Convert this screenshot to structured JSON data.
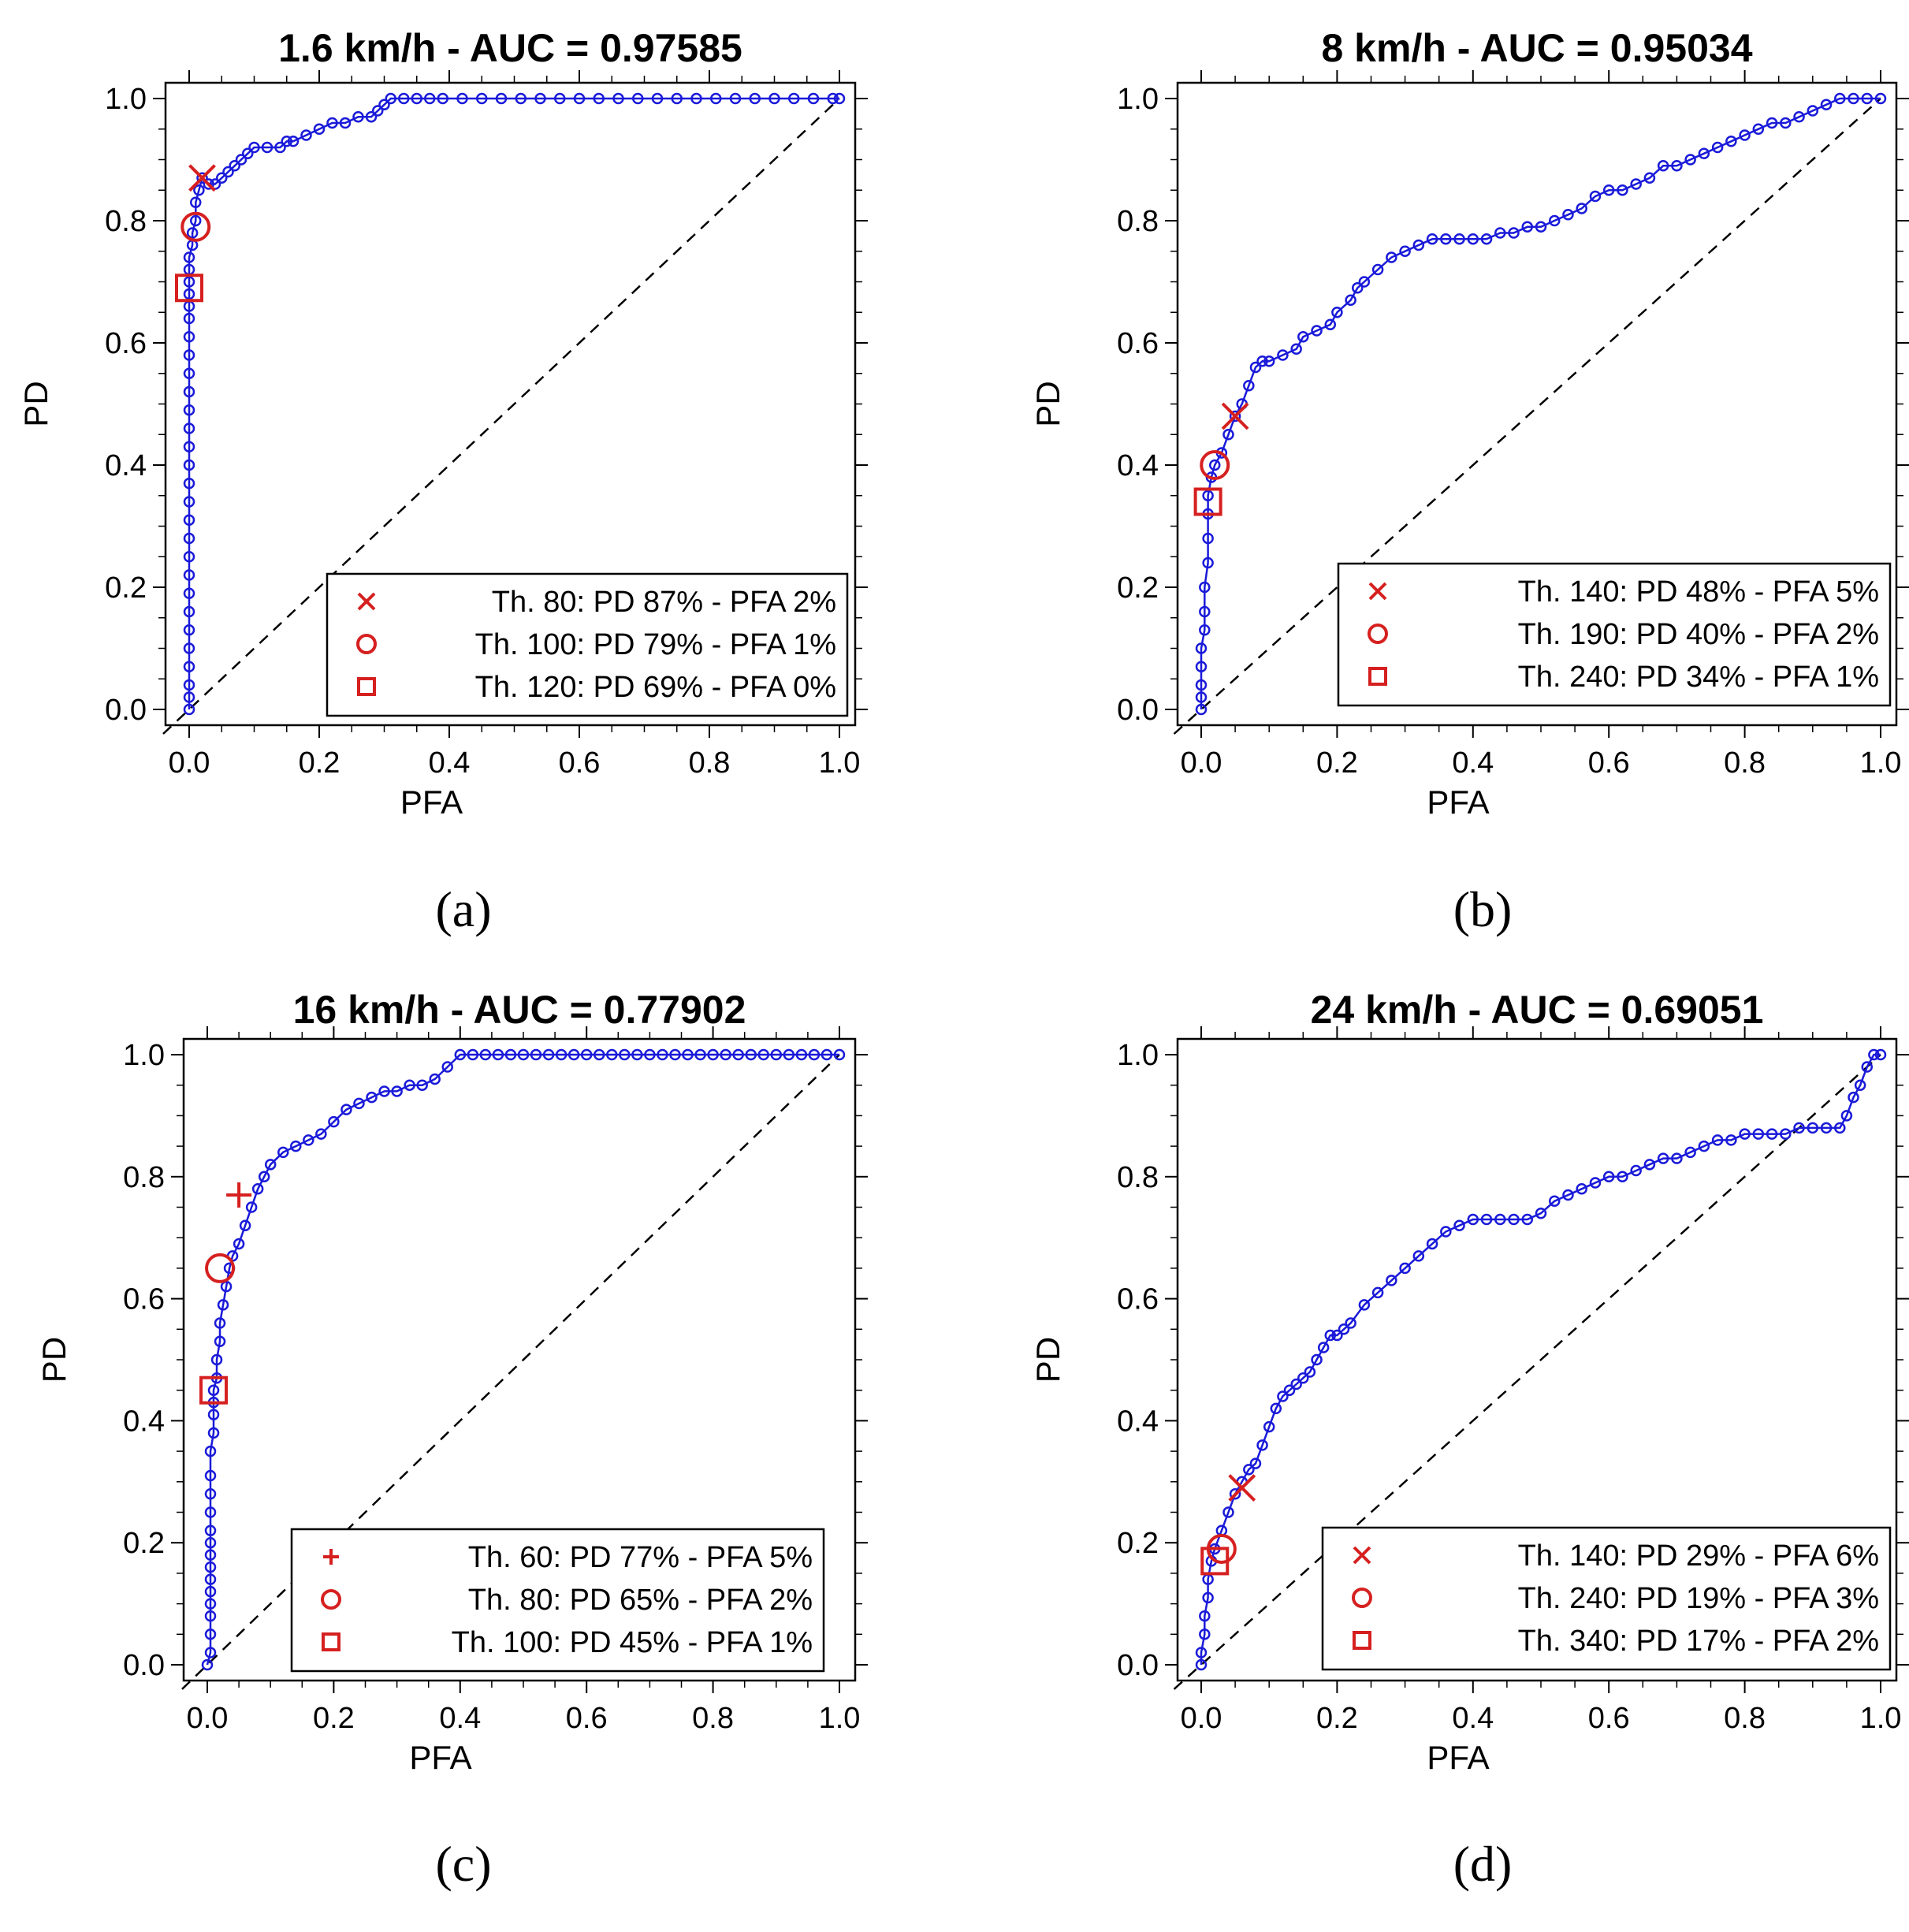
{
  "colors": {
    "curve": "#1a1ad9",
    "marker": "#d62020",
    "axis": "#000000",
    "diagonal": "#000000"
  },
  "chart_data": [
    {
      "type": "line",
      "panel_label": "(a)",
      "title": "1.6 km/h - AUC = 0.97585",
      "xlabel": "PFA",
      "ylabel": "PD",
      "xlim": [
        0,
        1
      ],
      "ylim": [
        0,
        1
      ],
      "xticks": [
        "0.0",
        "0.2",
        "0.4",
        "0.6",
        "0.8",
        "1.0"
      ],
      "yticks": [
        "0.0",
        "0.2",
        "0.4",
        "0.6",
        "0.8",
        "1.0"
      ],
      "legend_position": "bottom-right",
      "diagonal": true,
      "series": [
        {
          "name": "ROC",
          "x": [
            0,
            0,
            0,
            0,
            0,
            0,
            0,
            0,
            0,
            0,
            0,
            0,
            0,
            0,
            0,
            0,
            0,
            0,
            0,
            0,
            0,
            0,
            0,
            0,
            0,
            0,
            0,
            0,
            0.005,
            0.005,
            0.01,
            0.01,
            0.015,
            0.02,
            0.03,
            0.04,
            0.05,
            0.06,
            0.07,
            0.08,
            0.09,
            0.1,
            0.12,
            0.14,
            0.15,
            0.16,
            0.18,
            0.2,
            0.22,
            0.24,
            0.26,
            0.28,
            0.29,
            0.3,
            0.31,
            0.33,
            0.35,
            0.37,
            0.39,
            0.42,
            0.45,
            0.48,
            0.51,
            0.54,
            0.57,
            0.6,
            0.63,
            0.66,
            0.69,
            0.72,
            0.75,
            0.78,
            0.81,
            0.84,
            0.87,
            0.9,
            0.93,
            0.96,
            0.99,
            1.0
          ],
          "y": [
            0,
            0.02,
            0.04,
            0.07,
            0.1,
            0.13,
            0.16,
            0.19,
            0.22,
            0.25,
            0.28,
            0.31,
            0.34,
            0.37,
            0.4,
            0.43,
            0.46,
            0.49,
            0.52,
            0.55,
            0.58,
            0.61,
            0.64,
            0.66,
            0.68,
            0.7,
            0.72,
            0.74,
            0.76,
            0.78,
            0.8,
            0.83,
            0.85,
            0.87,
            0.86,
            0.86,
            0.87,
            0.88,
            0.89,
            0.9,
            0.91,
            0.92,
            0.92,
            0.92,
            0.93,
            0.93,
            0.94,
            0.95,
            0.96,
            0.96,
            0.97,
            0.97,
            0.98,
            0.99,
            1.0,
            1.0,
            1.0,
            1.0,
            1.0,
            1.0,
            1.0,
            1.0,
            1.0,
            1.0,
            1.0,
            1.0,
            1.0,
            1.0,
            1.0,
            1.0,
            1.0,
            1.0,
            1.0,
            1.0,
            1.0,
            1.0,
            1.0,
            1.0,
            1.0,
            1.0
          ]
        }
      ],
      "operating_points": [
        {
          "marker": "x",
          "label": "Th. 80: PD 87% - PFA 2%",
          "pfa": 0.02,
          "pd": 0.87
        },
        {
          "marker": "circle",
          "label": "Th. 100: PD 79% - PFA 1%",
          "pfa": 0.01,
          "pd": 0.79
        },
        {
          "marker": "square",
          "label": "Th. 120: PD 69% - PFA 0%",
          "pfa": 0.0,
          "pd": 0.69
        }
      ]
    },
    {
      "type": "line",
      "panel_label": "(b)",
      "title": "8 km/h - AUC = 0.95034",
      "xlabel": "PFA",
      "ylabel": "PD",
      "xlim": [
        0,
        1
      ],
      "ylim": [
        0,
        1
      ],
      "xticks": [
        "0.0",
        "0.2",
        "0.4",
        "0.6",
        "0.8",
        "1.0"
      ],
      "yticks": [
        "0.0",
        "0.2",
        "0.4",
        "0.6",
        "0.8",
        "1.0"
      ],
      "legend_position": "bottom-right",
      "diagonal": true,
      "series": [
        {
          "name": "ROC",
          "x": [
            0,
            0,
            0,
            0,
            0,
            0.005,
            0.005,
            0.005,
            0.01,
            0.01,
            0.01,
            0.01,
            0.015,
            0.02,
            0.03,
            0.04,
            0.05,
            0.06,
            0.07,
            0.08,
            0.09,
            0.1,
            0.12,
            0.14,
            0.15,
            0.17,
            0.19,
            0.2,
            0.22,
            0.23,
            0.24,
            0.26,
            0.28,
            0.3,
            0.32,
            0.34,
            0.36,
            0.38,
            0.4,
            0.42,
            0.44,
            0.46,
            0.48,
            0.5,
            0.52,
            0.54,
            0.56,
            0.58,
            0.6,
            0.62,
            0.64,
            0.66,
            0.68,
            0.7,
            0.72,
            0.74,
            0.76,
            0.78,
            0.8,
            0.82,
            0.84,
            0.86,
            0.88,
            0.9,
            0.92,
            0.94,
            0.96,
            0.98,
            1.0
          ],
          "y": [
            0,
            0.02,
            0.04,
            0.07,
            0.1,
            0.13,
            0.16,
            0.2,
            0.24,
            0.28,
            0.32,
            0.35,
            0.38,
            0.4,
            0.42,
            0.45,
            0.48,
            0.5,
            0.53,
            0.56,
            0.57,
            0.57,
            0.58,
            0.59,
            0.61,
            0.62,
            0.63,
            0.65,
            0.67,
            0.69,
            0.7,
            0.72,
            0.74,
            0.75,
            0.76,
            0.77,
            0.77,
            0.77,
            0.77,
            0.77,
            0.78,
            0.78,
            0.79,
            0.79,
            0.8,
            0.81,
            0.82,
            0.84,
            0.85,
            0.85,
            0.86,
            0.87,
            0.89,
            0.89,
            0.9,
            0.91,
            0.92,
            0.93,
            0.94,
            0.95,
            0.96,
            0.96,
            0.97,
            0.98,
            0.99,
            1.0,
            1.0,
            1.0,
            1.0
          ]
        }
      ],
      "operating_points": [
        {
          "marker": "x",
          "label": "Th. 140: PD 48% - PFA 5%",
          "pfa": 0.05,
          "pd": 0.48
        },
        {
          "marker": "circle",
          "label": "Th. 190: PD 40% - PFA 2%",
          "pfa": 0.02,
          "pd": 0.4
        },
        {
          "marker": "square",
          "label": "Th. 240: PD 34% - PFA 1%",
          "pfa": 0.01,
          "pd": 0.34
        }
      ]
    },
    {
      "type": "line",
      "panel_label": "(c)",
      "title": "16 km/h - AUC = 0.77902",
      "xlabel": "PFA",
      "ylabel": "PD",
      "xlim": [
        0,
        1
      ],
      "ylim": [
        0,
        1
      ],
      "xticks": [
        "0.0",
        "0.2",
        "0.4",
        "0.6",
        "0.8",
        "1.0"
      ],
      "yticks": [
        "0.0",
        "0.2",
        "0.4",
        "0.6",
        "0.8",
        "1.0"
      ],
      "legend_position": "bottom-right",
      "diagonal": true,
      "series": [
        {
          "name": "ROC",
          "x": [
            0,
            0.005,
            0.005,
            0.005,
            0.005,
            0.005,
            0.005,
            0.005,
            0.005,
            0.005,
            0.005,
            0.005,
            0.005,
            0.005,
            0.005,
            0.01,
            0.01,
            0.01,
            0.01,
            0.015,
            0.015,
            0.02,
            0.02,
            0.025,
            0.03,
            0.035,
            0.04,
            0.05,
            0.06,
            0.07,
            0.08,
            0.09,
            0.1,
            0.12,
            0.14,
            0.16,
            0.18,
            0.2,
            0.22,
            0.24,
            0.26,
            0.28,
            0.3,
            0.32,
            0.34,
            0.36,
            0.38,
            0.4,
            0.42,
            0.44,
            0.46,
            0.48,
            0.5,
            0.52,
            0.54,
            0.56,
            0.58,
            0.6,
            0.62,
            0.64,
            0.66,
            0.68,
            0.7,
            0.72,
            0.74,
            0.76,
            0.78,
            0.8,
            0.82,
            0.84,
            0.86,
            0.88,
            0.9,
            0.92,
            0.94,
            0.96,
            0.98,
            1.0
          ],
          "y": [
            0,
            0.02,
            0.05,
            0.08,
            0.1,
            0.12,
            0.14,
            0.16,
            0.18,
            0.2,
            0.22,
            0.25,
            0.28,
            0.31,
            0.35,
            0.38,
            0.41,
            0.43,
            0.45,
            0.47,
            0.5,
            0.53,
            0.56,
            0.59,
            0.62,
            0.65,
            0.67,
            0.69,
            0.72,
            0.75,
            0.78,
            0.8,
            0.82,
            0.84,
            0.85,
            0.86,
            0.87,
            0.89,
            0.91,
            0.92,
            0.93,
            0.94,
            0.94,
            0.95,
            0.95,
            0.96,
            0.98,
            1.0,
            1.0,
            1.0,
            1.0,
            1.0,
            1.0,
            1.0,
            1.0,
            1.0,
            1.0,
            1.0,
            1.0,
            1.0,
            1.0,
            1.0,
            1.0,
            1.0,
            1.0,
            1.0,
            1.0,
            1.0,
            1.0,
            1.0,
            1.0,
            1.0,
            1.0,
            1.0,
            1.0,
            1.0,
            1.0,
            1.0
          ]
        }
      ],
      "operating_points": [
        {
          "marker": "plus",
          "label": "Th. 60: PD 77% - PFA 5%",
          "pfa": 0.05,
          "pd": 0.77
        },
        {
          "marker": "circle",
          "label": "Th. 80: PD 65% - PFA 2%",
          "pfa": 0.02,
          "pd": 0.65
        },
        {
          "marker": "square",
          "label": "Th. 100: PD 45% - PFA 1%",
          "pfa": 0.01,
          "pd": 0.45
        }
      ]
    },
    {
      "type": "line",
      "panel_label": "(d)",
      "title": "24 km/h - AUC = 0.69051",
      "xlabel": "PFA",
      "ylabel": "PD",
      "xlim": [
        0,
        1
      ],
      "ylim": [
        0,
        1
      ],
      "xticks": [
        "0.0",
        "0.2",
        "0.4",
        "0.6",
        "0.8",
        "1.0"
      ],
      "yticks": [
        "0.0",
        "0.2",
        "0.4",
        "0.6",
        "0.8",
        "1.0"
      ],
      "legend_position": "bottom-right",
      "diagonal": true,
      "series": [
        {
          "name": "ROC",
          "x": [
            0,
            0,
            0.005,
            0.005,
            0.01,
            0.01,
            0.015,
            0.02,
            0.03,
            0.04,
            0.05,
            0.06,
            0.07,
            0.08,
            0.09,
            0.1,
            0.11,
            0.12,
            0.13,
            0.14,
            0.15,
            0.16,
            0.17,
            0.18,
            0.19,
            0.2,
            0.21,
            0.22,
            0.24,
            0.26,
            0.28,
            0.3,
            0.32,
            0.34,
            0.36,
            0.38,
            0.4,
            0.42,
            0.44,
            0.46,
            0.48,
            0.5,
            0.52,
            0.54,
            0.56,
            0.58,
            0.6,
            0.62,
            0.64,
            0.66,
            0.68,
            0.7,
            0.72,
            0.74,
            0.76,
            0.78,
            0.8,
            0.82,
            0.84,
            0.86,
            0.88,
            0.9,
            0.92,
            0.94,
            0.95,
            0.96,
            0.97,
            0.98,
            0.99,
            1.0
          ],
          "y": [
            0,
            0.02,
            0.05,
            0.08,
            0.11,
            0.14,
            0.17,
            0.19,
            0.22,
            0.25,
            0.28,
            0.3,
            0.32,
            0.33,
            0.36,
            0.39,
            0.42,
            0.44,
            0.45,
            0.46,
            0.47,
            0.48,
            0.5,
            0.52,
            0.54,
            0.54,
            0.55,
            0.56,
            0.59,
            0.61,
            0.63,
            0.65,
            0.67,
            0.69,
            0.71,
            0.72,
            0.73,
            0.73,
            0.73,
            0.73,
            0.73,
            0.74,
            0.76,
            0.77,
            0.78,
            0.79,
            0.8,
            0.8,
            0.81,
            0.82,
            0.83,
            0.83,
            0.84,
            0.85,
            0.86,
            0.86,
            0.87,
            0.87,
            0.87,
            0.87,
            0.88,
            0.88,
            0.88,
            0.88,
            0.9,
            0.93,
            0.95,
            0.98,
            1.0,
            1.0
          ]
        }
      ],
      "operating_points": [
        {
          "marker": "x",
          "label": "Th. 140: PD 29% - PFA 6%",
          "pfa": 0.06,
          "pd": 0.29
        },
        {
          "marker": "circle",
          "label": "Th. 240: PD 19% - PFA 3%",
          "pfa": 0.03,
          "pd": 0.19
        },
        {
          "marker": "square",
          "label": "Th. 340: PD 17% - PFA 2%",
          "pfa": 0.02,
          "pd": 0.17
        }
      ]
    }
  ]
}
